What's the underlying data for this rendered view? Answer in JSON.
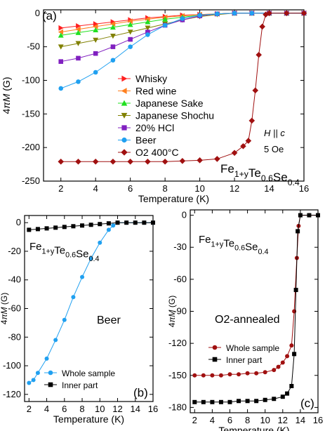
{
  "chart_data": [
    {
      "panel": "(a)",
      "type": "scatter",
      "xlabel": "Temperature (K)",
      "ylabel": "4πM (G)",
      "xlim": [
        1,
        16
      ],
      "ylim": [
        -250,
        5
      ],
      "xticks": [
        2,
        4,
        6,
        8,
        10,
        12,
        14,
        16
      ],
      "yticks": [
        0,
        -50,
        -100,
        -150,
        -200,
        -250
      ],
      "annotations": [
        "H || c",
        "5 Oe",
        "Fe1+yTe0.6Se0.4"
      ],
      "legend_position": "center",
      "series": [
        {
          "name": "Whisky",
          "color": "#ff2020",
          "marker": "triangle-right",
          "x": [
            2,
            3,
            4,
            5,
            6,
            7,
            8,
            9,
            10,
            11,
            12,
            13,
            14,
            15,
            16
          ],
          "y": [
            -22,
            -19,
            -16,
            -13,
            -10,
            -7,
            -5,
            -3,
            -2,
            -1,
            0,
            0,
            0,
            0,
            0
          ]
        },
        {
          "name": "Red wine",
          "color": "#ff8020",
          "marker": "triangle-left",
          "x": [
            2,
            3,
            4,
            5,
            6,
            7,
            8,
            9,
            10,
            11,
            12,
            13,
            14,
            15,
            16
          ],
          "y": [
            -28,
            -24,
            -20,
            -16,
            -12,
            -9,
            -6,
            -4,
            -2,
            -1,
            0,
            0,
            0,
            0,
            0
          ]
        },
        {
          "name": "Japanese Sake",
          "color": "#20e020",
          "marker": "triangle-up",
          "x": [
            2,
            3,
            4,
            5,
            6,
            7,
            8,
            9,
            10,
            11,
            12,
            13,
            14,
            15,
            16
          ],
          "y": [
            -33,
            -29,
            -25,
            -21,
            -17,
            -13,
            -9,
            -6,
            -3,
            -1,
            0,
            0,
            0,
            0,
            0
          ]
        },
        {
          "name": "Japanese Shochu",
          "color": "#808000",
          "marker": "triangle-down",
          "x": [
            2,
            3,
            4,
            5,
            6,
            7,
            8,
            9,
            10,
            11,
            12,
            13,
            14,
            15,
            16
          ],
          "y": [
            -50,
            -45,
            -40,
            -34,
            -28,
            -22,
            -16,
            -10,
            -5,
            -2,
            0,
            0,
            0,
            0,
            0
          ]
        },
        {
          "name": "20% HCl",
          "color": "#8020c0",
          "marker": "square",
          "x": [
            2,
            3,
            4,
            5,
            6,
            7,
            8,
            9,
            10,
            11,
            12,
            13,
            14,
            15,
            16
          ],
          "y": [
            -72,
            -67,
            -60,
            -50,
            -39,
            -28,
            -18,
            -10,
            -4,
            -1,
            0,
            0,
            0,
            0,
            0
          ]
        },
        {
          "name": "Beer",
          "color": "#20a0f0",
          "marker": "circle",
          "x": [
            2,
            3,
            4,
            5,
            6,
            7,
            8,
            9,
            10,
            11,
            12,
            13,
            14,
            15,
            16
          ],
          "y": [
            -112,
            -102,
            -88,
            -70,
            -50,
            -32,
            -18,
            -8,
            -3,
            -1,
            0,
            0,
            0,
            0,
            0
          ]
        },
        {
          "name": "O2 400°C",
          "color": "#a01010",
          "marker": "diamond",
          "x": [
            2,
            3,
            4,
            5,
            6,
            7,
            8,
            9,
            10,
            11,
            12,
            12.5,
            12.8,
            13.0,
            13.2,
            13.4,
            13.6,
            13.8,
            14,
            15,
            16
          ],
          "y": [
            -221,
            -221,
            -221,
            -221,
            -221,
            -221,
            -221,
            -220,
            -219,
            -217,
            -208,
            -198,
            -190,
            -160,
            -115,
            -62,
            -20,
            -2,
            0,
            0,
            0
          ]
        }
      ]
    },
    {
      "panel": "(b)",
      "type": "scatter",
      "xlabel": "Temperature (K)",
      "ylabel": "4πM (G)",
      "xlim": [
        1.5,
        16
      ],
      "ylim": [
        -125,
        5
      ],
      "xticks": [
        2,
        4,
        6,
        8,
        10,
        12,
        14,
        16
      ],
      "yticks": [
        0,
        -20,
        -40,
        -60,
        -80,
        -100,
        -120
      ],
      "annotations": [
        "Fe1+yTe0.6Se0.4",
        "Beer"
      ],
      "legend_position": "bottom-center",
      "series": [
        {
          "name": "Whole sample",
          "color": "#20a0f0",
          "marker": "circle",
          "x": [
            2,
            2.5,
            3,
            4,
            5,
            6,
            7,
            8,
            9,
            10,
            11,
            11.5,
            12,
            13,
            14,
            15,
            16
          ],
          "y": [
            -112,
            -110,
            -105,
            -95,
            -82,
            -68,
            -52,
            -38,
            -25,
            -14,
            -5,
            -2,
            0,
            0,
            0,
            0,
            0
          ]
        },
        {
          "name": "Inner part",
          "color": "#000000",
          "marker": "square",
          "x": [
            2,
            3,
            4,
            5,
            6,
            7,
            8,
            9,
            10,
            11,
            12,
            13,
            14,
            15,
            16
          ],
          "y": [
            -5,
            -4.5,
            -4,
            -3.5,
            -3,
            -2.5,
            -2,
            -1.5,
            -1,
            -0.5,
            0,
            0,
            0,
            0,
            0
          ]
        }
      ]
    },
    {
      "panel": "(c)",
      "type": "scatter",
      "xlabel": "Temperature (K)",
      "ylabel": "4πM (G)",
      "xlim": [
        1.5,
        16
      ],
      "ylim": [
        -185,
        5
      ],
      "xticks": [
        2,
        4,
        6,
        8,
        10,
        12,
        14,
        16
      ],
      "yticks": [
        0,
        -30,
        -60,
        -90,
        -120,
        -150,
        -180
      ],
      "annotations": [
        "Fe1+yTe0.6Se0.4",
        "O2-annealed"
      ],
      "legend_position": "bottom-left",
      "series": [
        {
          "name": "Whole sample",
          "color": "#a01010",
          "marker": "circle",
          "x": [
            2,
            3,
            4,
            5,
            6,
            7,
            8,
            9,
            10,
            11,
            11.5,
            12,
            12.5,
            13,
            13.3,
            13.6,
            13.8,
            14,
            15,
            16
          ],
          "y": [
            -150,
            -150,
            -150,
            -150,
            -149,
            -149,
            -148,
            -148,
            -147,
            -145,
            -142,
            -138,
            -132,
            -122,
            -90,
            -40,
            -10,
            0,
            0,
            0
          ]
        },
        {
          "name": "Inner part",
          "color": "#000000",
          "marker": "square",
          "x": [
            2,
            3,
            4,
            5,
            6,
            7,
            8,
            9,
            10,
            11,
            12,
            12.5,
            13,
            13.3,
            13.5,
            13.7,
            14,
            15,
            16
          ],
          "y": [
            -175,
            -175,
            -175,
            -175,
            -175,
            -174,
            -174,
            -174,
            -173,
            -172,
            -170,
            -167,
            -160,
            -130,
            -70,
            -15,
            0,
            0,
            0
          ]
        }
      ]
    }
  ]
}
